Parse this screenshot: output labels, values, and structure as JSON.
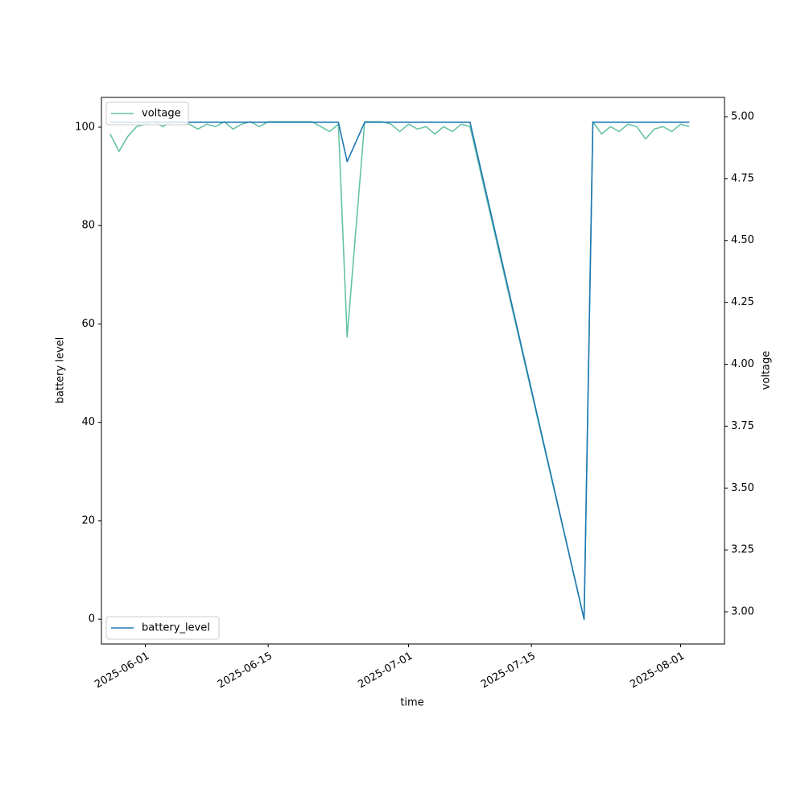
{
  "chart_data": {
    "type": "line",
    "x_label": "time",
    "y_label": "battery level",
    "y2_label": "voltage",
    "x": [
      "2025-05-28",
      "2025-05-29",
      "2025-05-30",
      "2025-05-31",
      "2025-06-01",
      "2025-06-02",
      "2025-06-03",
      "2025-06-04",
      "2025-06-05",
      "2025-06-06",
      "2025-06-07",
      "2025-06-08",
      "2025-06-09",
      "2025-06-10",
      "2025-06-11",
      "2025-06-12",
      "2025-06-13",
      "2025-06-14",
      "2025-06-15",
      "2025-06-16",
      "2025-06-17",
      "2025-06-18",
      "2025-06-19",
      "2025-06-20",
      "2025-06-21",
      "2025-06-22",
      "2025-06-23",
      "2025-06-24",
      "2025-06-26",
      "2025-06-27",
      "2025-06-28",
      "2025-06-29",
      "2025-06-30",
      "2025-07-01",
      "2025-07-02",
      "2025-07-03",
      "2025-07-04",
      "2025-07-05",
      "2025-07-06",
      "2025-07-07",
      "2025-07-08",
      "2025-07-21",
      "2025-07-22",
      "2025-07-23",
      "2025-07-24",
      "2025-07-25",
      "2025-07-26",
      "2025-07-27",
      "2025-07-28",
      "2025-07-29",
      "2025-07-30",
      "2025-07-31",
      "2025-08-01",
      "2025-08-02"
    ],
    "series": [
      {
        "name": "battery_level",
        "color": "#1f77b4",
        "axis": "y",
        "legend": "lower left",
        "values": [
          101,
          101,
          101,
          101,
          101,
          101,
          101,
          101,
          101,
          101,
          101,
          101,
          101,
          101,
          101,
          101,
          101,
          101,
          101,
          101,
          101,
          101,
          101,
          101,
          101,
          101,
          101,
          93,
          101,
          101,
          101,
          101,
          101,
          101,
          101,
          101,
          101,
          101,
          101,
          101,
          101,
          0,
          101,
          101,
          101,
          101,
          101,
          101,
          101,
          101,
          101,
          101,
          101,
          101
        ]
      },
      {
        "name": "voltage",
        "color": "#66c2a5",
        "axis": "y2",
        "legend": "upper left",
        "values": [
          4.93,
          4.86,
          4.92,
          4.96,
          4.97,
          4.98,
          4.96,
          4.98,
          4.98,
          4.97,
          4.95,
          4.97,
          4.96,
          4.98,
          4.95,
          4.97,
          4.98,
          4.96,
          4.98,
          4.98,
          4.98,
          4.98,
          4.98,
          4.98,
          4.96,
          4.94,
          4.97,
          4.11,
          4.98,
          4.98,
          4.98,
          4.97,
          4.94,
          4.97,
          4.95,
          4.96,
          4.93,
          4.96,
          4.94,
          4.97,
          4.96,
          2.97,
          4.98,
          4.93,
          4.96,
          4.94,
          4.97,
          4.96,
          4.91,
          4.95,
          4.96,
          4.94,
          4.97,
          4.96
        ]
      }
    ],
    "xlim": [
      "2025-05-27",
      "2025-08-06"
    ],
    "xticks": [
      "2025-06-01",
      "2025-06-15",
      "2025-07-01",
      "2025-07-15",
      "2025-08-01"
    ],
    "ylim": [
      -5.05,
      106.05
    ],
    "yticks": [
      0,
      20,
      40,
      60,
      80,
      100
    ],
    "y2lim": [
      2.87,
      5.078
    ],
    "y2ticks": [
      {
        "value": 3,
        "label": "3.00"
      },
      {
        "value": 3.25,
        "label": "3.25"
      },
      {
        "value": 3.5,
        "label": "3.50"
      },
      {
        "value": 3.75,
        "label": "3.75"
      },
      {
        "value": 4,
        "label": "4.00"
      },
      {
        "value": 4.25,
        "label": "4.25"
      },
      {
        "value": 4.5,
        "label": "4.50"
      },
      {
        "value": 4.75,
        "label": "4.75"
      },
      {
        "value": 5,
        "label": "5.00"
      }
    ],
    "grid": false
  }
}
